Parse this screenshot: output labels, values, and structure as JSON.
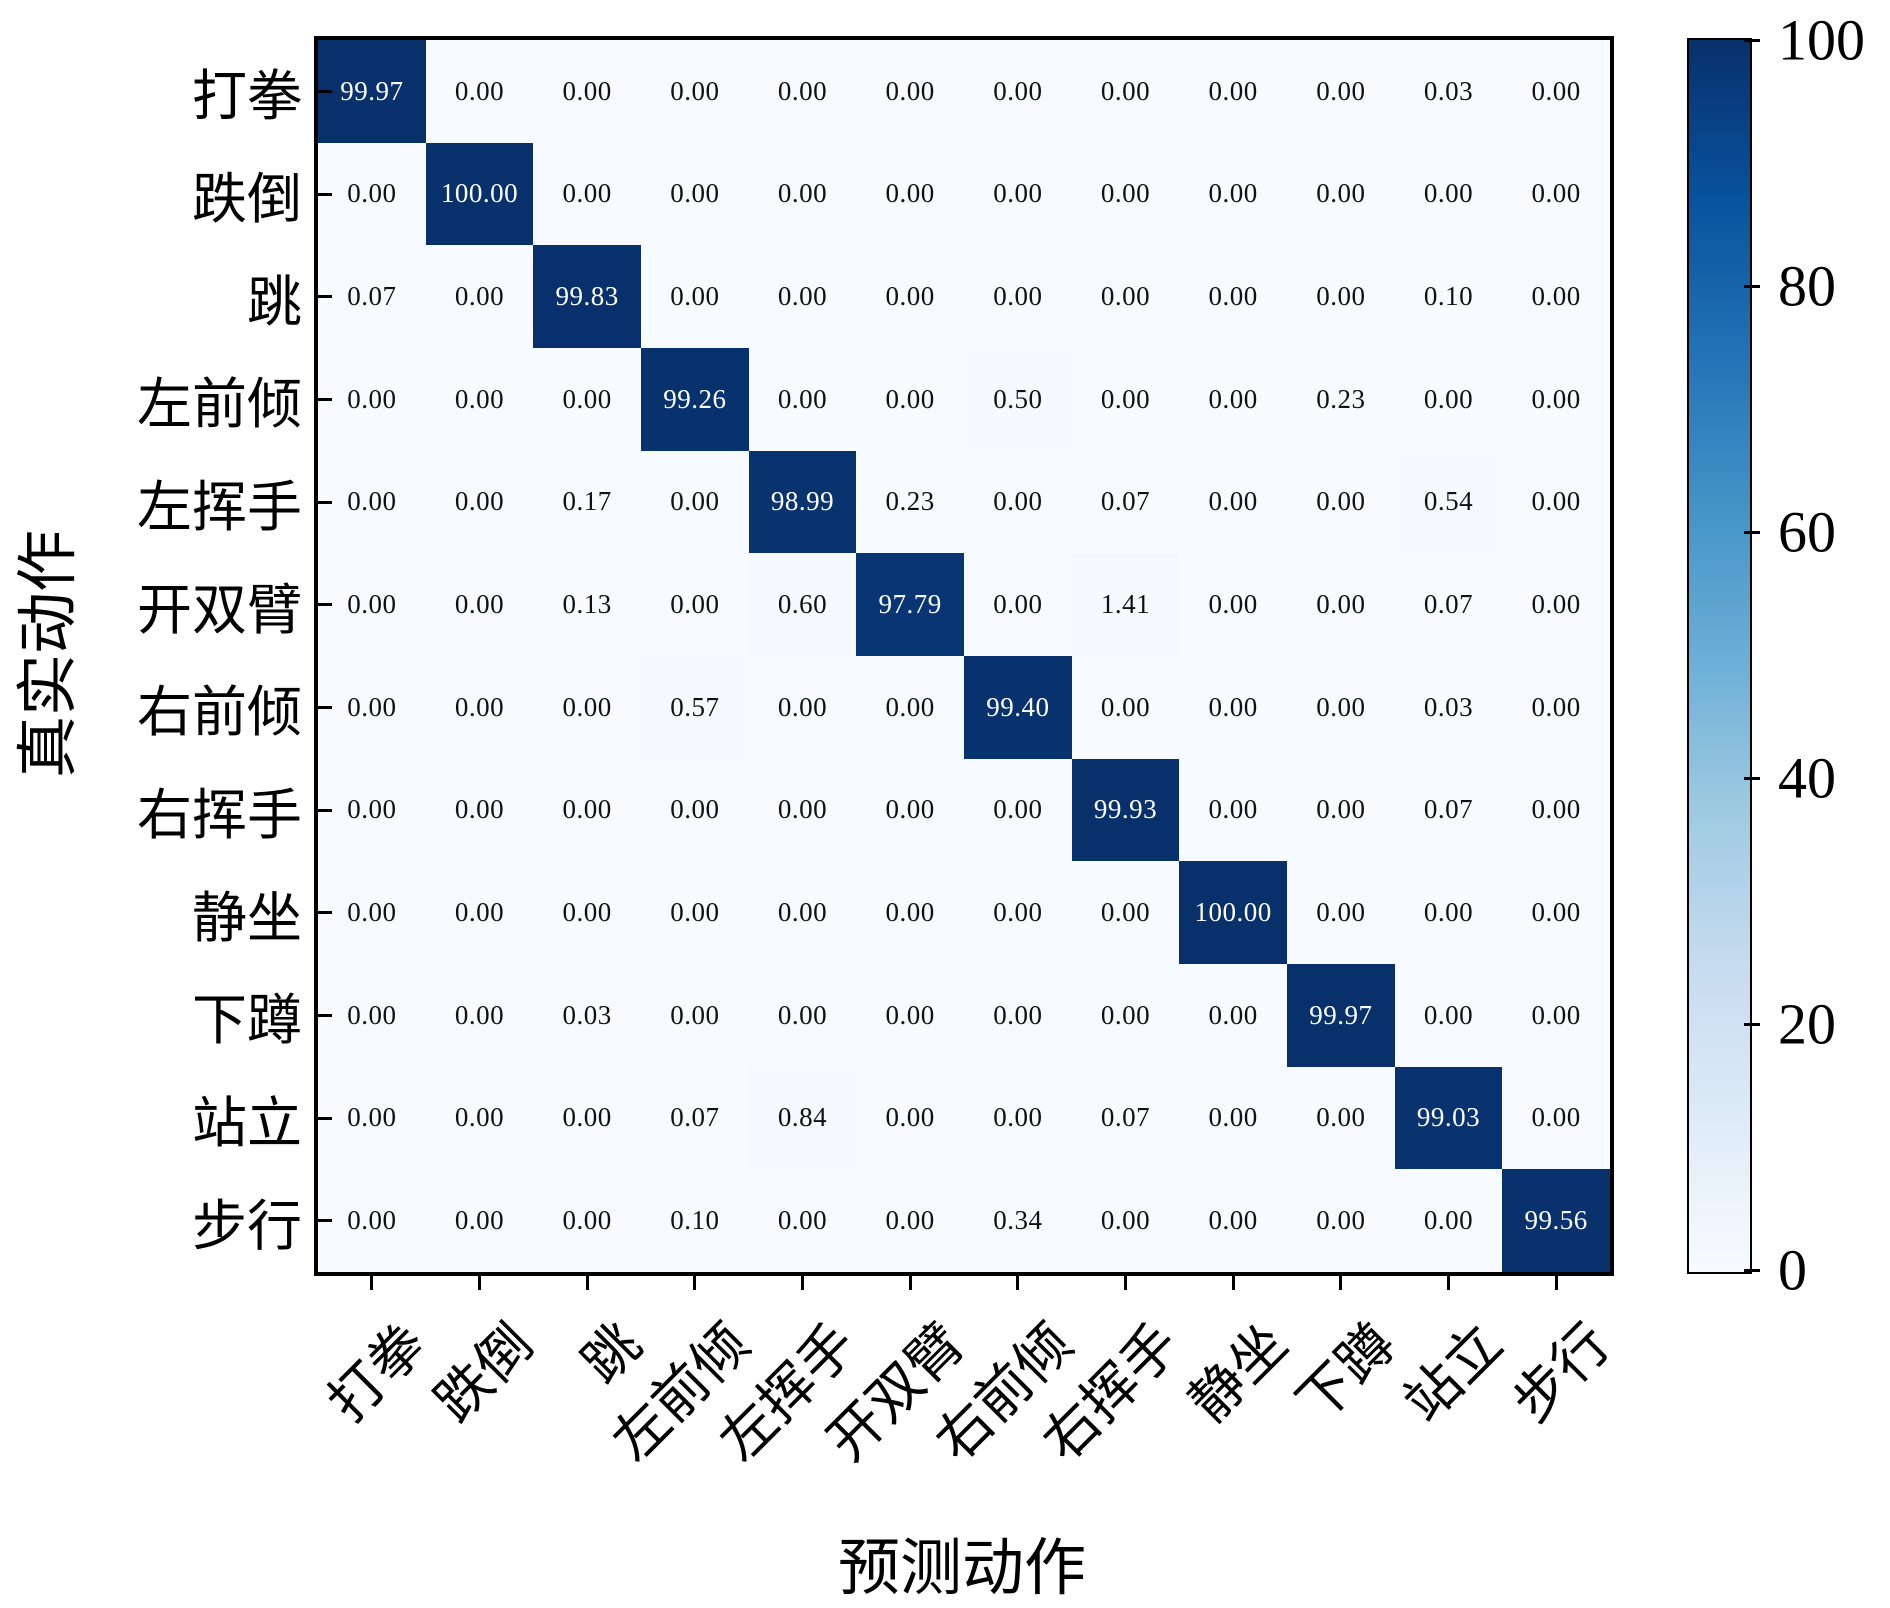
{
  "chart_data": {
    "type": "heatmap",
    "title": "",
    "xlabel": "预测动作",
    "ylabel": "真实动作",
    "categories": [
      "打拳",
      "跌倒",
      "跳",
      "左前倾",
      "左挥手",
      "开双臂",
      "右前倾",
      "右挥手",
      "静坐",
      "下蹲",
      "站立",
      "步行"
    ],
    "rows": [
      [
        "99.97",
        "0.00",
        "0.00",
        "0.00",
        "0.00",
        "0.00",
        "0.00",
        "0.00",
        "0.00",
        "0.00",
        "0.03",
        "0.00"
      ],
      [
        "0.00",
        "100.00",
        "0.00",
        "0.00",
        "0.00",
        "0.00",
        "0.00",
        "0.00",
        "0.00",
        "0.00",
        "0.00",
        "0.00"
      ],
      [
        "0.07",
        "0.00",
        "99.83",
        "0.00",
        "0.00",
        "0.00",
        "0.00",
        "0.00",
        "0.00",
        "0.00",
        "0.10",
        "0.00"
      ],
      [
        "0.00",
        "0.00",
        "0.00",
        "99.26",
        "0.00",
        "0.00",
        "0.50",
        "0.00",
        "0.00",
        "0.23",
        "0.00",
        "0.00"
      ],
      [
        "0.00",
        "0.00",
        "0.17",
        "0.00",
        "98.99",
        "0.23",
        "0.00",
        "0.07",
        "0.00",
        "0.00",
        "0.54",
        "0.00"
      ],
      [
        "0.00",
        "0.00",
        "0.13",
        "0.00",
        "0.60",
        "97.79",
        "0.00",
        "1.41",
        "0.00",
        "0.00",
        "0.07",
        "0.00"
      ],
      [
        "0.00",
        "0.00",
        "0.00",
        "0.57",
        "0.00",
        "0.00",
        "99.40",
        "0.00",
        "0.00",
        "0.00",
        "0.03",
        "0.00"
      ],
      [
        "0.00",
        "0.00",
        "0.00",
        "0.00",
        "0.00",
        "0.00",
        "0.00",
        "99.93",
        "0.00",
        "0.00",
        "0.07",
        "0.00"
      ],
      [
        "0.00",
        "0.00",
        "0.00",
        "0.00",
        "0.00",
        "0.00",
        "0.00",
        "0.00",
        "100.00",
        "0.00",
        "0.00",
        "0.00"
      ],
      [
        "0.00",
        "0.00",
        "0.03",
        "0.00",
        "0.00",
        "0.00",
        "0.00",
        "0.00",
        "0.00",
        "99.97",
        "0.00",
        "0.00"
      ],
      [
        "0.00",
        "0.00",
        "0.00",
        "0.07",
        "0.84",
        "0.00",
        "0.00",
        "0.07",
        "0.00",
        "0.00",
        "99.03",
        "0.00"
      ],
      [
        "0.00",
        "0.00",
        "0.00",
        "0.10",
        "0.00",
        "0.00",
        "0.34",
        "0.00",
        "0.00",
        "0.00",
        "0.00",
        "99.56"
      ]
    ],
    "colormap": "Blues",
    "colorbar": {
      "min": 0,
      "max": 100,
      "ticks": [
        0,
        20,
        40,
        60,
        80,
        100
      ]
    },
    "value_range": [
      0,
      100
    ],
    "legend_position": "right-colorbar",
    "grid": false
  },
  "colors": {
    "cmap_low": "#f7fbff",
    "cmap_high": "#08306b",
    "blues_stops": [
      "#f7fbff",
      "#deebf7",
      "#c6dbef",
      "#9ecae1",
      "#6baed6",
      "#4292c6",
      "#2171b5",
      "#08519c",
      "#08306b"
    ],
    "cell_text_dark": "#111111",
    "cell_text_light": "#ffffff",
    "axis_color": "#000000"
  }
}
